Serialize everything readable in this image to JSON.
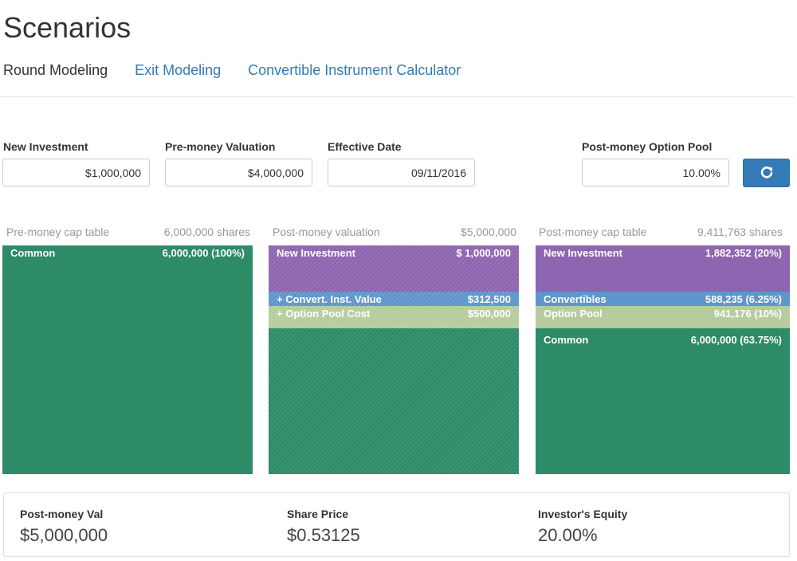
{
  "page": {
    "title": "Scenarios"
  },
  "nav": {
    "tabs": [
      {
        "label": "Round Modeling"
      },
      {
        "label": "Exit Modeling"
      },
      {
        "label": "Convertible Instrument Calculator"
      }
    ]
  },
  "form": {
    "new_investment": {
      "label": "New Investment",
      "value": "$1,000,000"
    },
    "pre_money_valuation": {
      "label": "Pre-money Valuation",
      "value": "$4,000,000"
    },
    "effective_date": {
      "label": "Effective Date",
      "value": "09/11/2016"
    },
    "option_pool": {
      "label": "Post-money Option Pool",
      "value": "10.00%"
    },
    "refresh_icon": "refresh-icon"
  },
  "panels": {
    "pre_money": {
      "title": "Pre-money cap table",
      "total": "6,000,000 shares",
      "rows": [
        {
          "label": "Common",
          "value": "6,000,000 (100%)"
        }
      ]
    },
    "post_money_valuation": {
      "title": "Post-money valuation",
      "total": "$5,000,000",
      "rows": [
        {
          "label": "New Investment",
          "value": "$ 1,000,000"
        },
        {
          "label": "+ Convert. Inst. Value",
          "value": "$312,500"
        },
        {
          "label": "+ Option Pool Cost",
          "value": "$500,000"
        }
      ]
    },
    "post_money": {
      "title": "Post-money cap table",
      "total": "9,411,763 shares",
      "rows": [
        {
          "label": "New Investment",
          "value": "1,882,352 (20%)"
        },
        {
          "label": "Convertibles",
          "value": "588,235 (6.25%)"
        },
        {
          "label": "Option Pool",
          "value": "941,176 (10%)"
        },
        {
          "label": "Common",
          "value": "6,000,000 (63.75%)"
        }
      ]
    }
  },
  "colors": {
    "new_investment": "#8e65b0",
    "convertibles": "#5e96cc",
    "option_pool": "#b6cc9e",
    "common": "#2e8b67",
    "accent": "#337ab7"
  },
  "summary": {
    "post_money_val": {
      "label": "Post-money Val",
      "value": "$5,000,000"
    },
    "share_price": {
      "label": "Share Price",
      "value": "$0.53125"
    },
    "investor_equity": {
      "label": "Investor's Equity",
      "value": "20.00%"
    }
  }
}
